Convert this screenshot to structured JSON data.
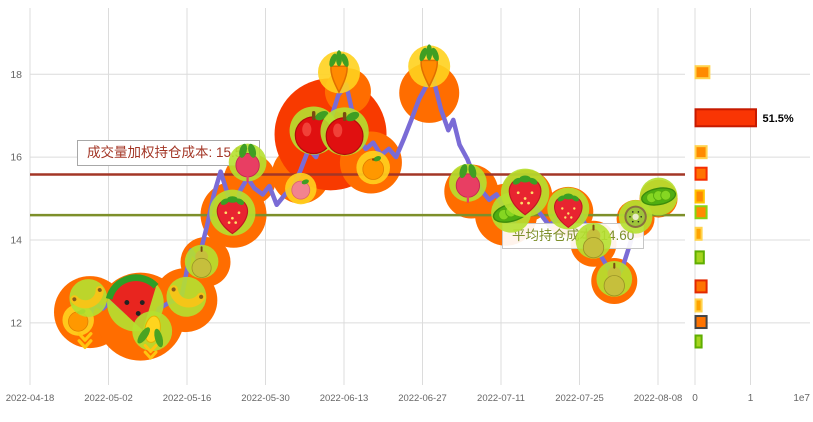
{
  "colors": {
    "line": "#7a6bd6",
    "grid": "#dcdcdc",
    "tick_text": "#666666",
    "blob_orange": "#ff6d00",
    "blob_red": "#f83a00"
  },
  "chart_data": {
    "type": "line",
    "title": "",
    "xlabel": "",
    "ylabel": "",
    "x_ticks": [
      "2022-04-18",
      "2022-05-02",
      "2022-05-16",
      "2022-05-30",
      "2022-06-13",
      "2022-06-27",
      "2022-07-11",
      "2022-07-25",
      "2022-08-08"
    ],
    "x_tick_interval_days": 14,
    "y_ticks": [
      12,
      14,
      16,
      18
    ],
    "ylim": [
      10.5,
      19.6
    ],
    "grid": true,
    "series": [
      {
        "name": "price",
        "color": "#7a6bd6",
        "points": [
          [
            8.5,
            12.55
          ],
          [
            10,
            11.95
          ],
          [
            11.5,
            12.45
          ],
          [
            13,
            12.35
          ],
          [
            14.7,
            12.55
          ],
          [
            16.5,
            12.3
          ],
          [
            18.5,
            12.5
          ],
          [
            20,
            12.2
          ],
          [
            21.5,
            11.85
          ],
          [
            23,
            12.35
          ],
          [
            25,
            12.5
          ],
          [
            27,
            12.6
          ],
          [
            28.7,
            13.75
          ],
          [
            30,
            13.5
          ],
          [
            31.5,
            14.3
          ],
          [
            32.8,
            15.1
          ],
          [
            34,
            15.65
          ],
          [
            35.5,
            15.0
          ],
          [
            36.5,
            14.75
          ],
          [
            37.5,
            15.2
          ],
          [
            38.8,
            15.5
          ],
          [
            40,
            15.25
          ],
          [
            41.5,
            15.1
          ],
          [
            42.7,
            15.3
          ],
          [
            44,
            14.85
          ],
          [
            45.5,
            15.1
          ],
          [
            47,
            15.3
          ],
          [
            48.3,
            15.7
          ],
          [
            49.7,
            16.2
          ],
          [
            51,
            16.0
          ],
          [
            52.2,
            16.45
          ],
          [
            53.6,
            16.9
          ],
          [
            55,
            17.5
          ],
          [
            56.4,
            17.75
          ],
          [
            57.8,
            16.9
          ],
          [
            58.6,
            16.45
          ],
          [
            59.9,
            16.2
          ],
          [
            61.2,
            16.35
          ],
          [
            62.6,
            16.05
          ],
          [
            64,
            16.2
          ],
          [
            65.3,
            16.0
          ],
          [
            66.7,
            16.45
          ],
          [
            68,
            16.9
          ],
          [
            69.4,
            17.4
          ],
          [
            70.8,
            17.75
          ],
          [
            71.9,
            17.9
          ],
          [
            73.3,
            17.15
          ],
          [
            74.6,
            16.65
          ],
          [
            75.5,
            16.9
          ],
          [
            76.6,
            16.3
          ],
          [
            78,
            15.95
          ],
          [
            79,
            15.6
          ],
          [
            80.5,
            15.2
          ],
          [
            81.9,
            14.97
          ],
          [
            83.2,
            15.1
          ],
          [
            84.6,
            14.75
          ],
          [
            85.8,
            14.35
          ],
          [
            87.2,
            14.6
          ],
          [
            88.5,
            15.1
          ],
          [
            89.8,
            14.85
          ],
          [
            91.2,
            14.6
          ],
          [
            92.6,
            14.35
          ],
          [
            93.9,
            14.5
          ],
          [
            95.3,
            14.75
          ],
          [
            96.7,
            14.6
          ],
          [
            98,
            14.68
          ],
          [
            99.4,
            14.25
          ],
          [
            100.5,
            13.9
          ],
          [
            101.9,
            13.6
          ],
          [
            103.2,
            13.3
          ],
          [
            104.4,
            13.0
          ],
          [
            105.7,
            13.35
          ],
          [
            107,
            13.9
          ],
          [
            108.2,
            14.5
          ],
          [
            109.6,
            14.75
          ],
          [
            111,
            14.97
          ],
          [
            112.5,
            15.25
          ]
        ]
      }
    ],
    "hlines": [
      {
        "name": "vwap-line",
        "value": 15.58,
        "color": "#a33626",
        "label": "成交量加权持仓成本: 15.58"
      },
      {
        "name": "avg-cost-line",
        "value": 14.6,
        "color": "#7d8f2a",
        "label": "平均持仓成本: 14.60"
      }
    ],
    "volume_profile": {
      "x_ticks": [
        "0",
        "1"
      ],
      "scale_label": "1e7",
      "bars": [
        {
          "price": 18.05,
          "value": 0.25,
          "fill": "#ff8a00",
          "stroke": "#ffd34d"
        },
        {
          "price": 16.95,
          "value": 1.09,
          "fill": "#f93504",
          "stroke": "#c61a00",
          "label": "51.5%"
        },
        {
          "price": 16.12,
          "value": 0.2,
          "fill": "#ff8a00",
          "stroke": "#ffd34d"
        },
        {
          "price": 15.6,
          "value": 0.2,
          "fill": "#ff7300",
          "stroke": "#f52d00"
        },
        {
          "price": 15.05,
          "value": 0.15,
          "fill": "#ff8a00",
          "stroke": "#ffc400"
        },
        {
          "price": 14.67,
          "value": 0.2,
          "fill": "#ff8a00",
          "stroke": "#86d413"
        },
        {
          "price": 14.15,
          "value": 0.11,
          "fill": "#ffa300",
          "stroke": "#ffd34d"
        },
        {
          "price": 13.58,
          "value": 0.15,
          "fill": "#a6d41f",
          "stroke": "#5fae00"
        },
        {
          "price": 12.88,
          "value": 0.2,
          "fill": "#ff7300",
          "stroke": "#e22800"
        },
        {
          "price": 12.42,
          "value": 0.11,
          "fill": "#ffa300",
          "stroke": "#ffd34d"
        },
        {
          "price": 12.02,
          "value": 0.2,
          "fill": "#ff7300",
          "stroke": "#444444"
        },
        {
          "price": 11.55,
          "value": 0.11,
          "fill": "#a6d41f",
          "stroke": "#5fae00"
        }
      ]
    }
  },
  "decorations": {
    "blobs": [
      {
        "day": 10.7,
        "price": 12.26,
        "r": 36,
        "color": "#ff6d00"
      },
      {
        "day": 19.7,
        "price": 12.15,
        "r": 44,
        "color": "#ff6d00"
      },
      {
        "day": 27.7,
        "price": 12.55,
        "r": 32,
        "color": "#ff6d00"
      },
      {
        "day": 31.3,
        "price": 13.47,
        "r": 25,
        "color": "#ff6d00"
      },
      {
        "day": 36.3,
        "price": 14.61,
        "r": 33,
        "color": "#ff6d00"
      },
      {
        "day": 39.2,
        "price": 15.46,
        "r": 26,
        "color": "#ff6d00"
      },
      {
        "day": 48.3,
        "price": 15.58,
        "r": 29,
        "color": "#ff6d00"
      },
      {
        "day": 53.6,
        "price": 16.55,
        "r": 56,
        "color": "#f83a00"
      },
      {
        "day": 56.7,
        "price": 17.59,
        "r": 23,
        "color": "#ff6d00"
      },
      {
        "day": 60.8,
        "price": 15.87,
        "r": 31,
        "color": "#ff6d00"
      },
      {
        "day": 71.2,
        "price": 17.55,
        "r": 30,
        "color": "#ff6d00"
      },
      {
        "day": 78.7,
        "price": 15.17,
        "r": 27,
        "color": "#ff6d00"
      },
      {
        "day": 84.9,
        "price": 14.61,
        "r": 31,
        "color": "#ff6d00"
      },
      {
        "day": 88.5,
        "price": 15.07,
        "r": 26,
        "color": "#ff6d00"
      },
      {
        "day": 96.0,
        "price": 14.68,
        "r": 25,
        "color": "#ff6d00"
      },
      {
        "day": 100.5,
        "price": 13.91,
        "r": 23,
        "color": "#ff6d00"
      },
      {
        "day": 104.2,
        "price": 13.01,
        "r": 23,
        "color": "#ff6d00"
      },
      {
        "day": 108.0,
        "price": 14.51,
        "r": 19,
        "color": "#ff6d00"
      },
      {
        "day": 112.1,
        "price": 15.0,
        "r": 19,
        "color": "#ff6d00"
      }
    ],
    "fruits": [
      {
        "type": "tangerine",
        "day": 8.6,
        "price": 12.07,
        "size": 30,
        "rot": 0,
        "halo": "#ffd21e"
      },
      {
        "type": "banana",
        "day": 10.4,
        "price": 12.6,
        "size": 36,
        "rot": -20,
        "halo": "#b5e030"
      },
      {
        "type": "arrow-down",
        "day": 9.8,
        "price": 11.55,
        "size": 26,
        "rot": 0
      },
      {
        "type": "watermelon",
        "day": 18.8,
        "price": 12.48,
        "size": 54,
        "rot": -15,
        "halo": "#b5e030"
      },
      {
        "type": "corn",
        "day": 21.8,
        "price": 11.8,
        "size": 38,
        "rot": 10,
        "halo": "#b5e030"
      },
      {
        "type": "arrow-down",
        "day": 21.5,
        "price": 11.28,
        "size": 24,
        "rot": 0
      },
      {
        "type": "banana",
        "day": 27.9,
        "price": 12.63,
        "size": 38,
        "rot": 15,
        "halo": "#b5e030"
      },
      {
        "type": "pear",
        "day": 30.6,
        "price": 13.48,
        "size": 32,
        "rot": 0,
        "halo": "#b5e030"
      },
      {
        "type": "strawberry",
        "day": 36.1,
        "price": 14.66,
        "size": 44,
        "rot": 0,
        "halo": "#b5e030"
      },
      {
        "type": "radish",
        "day": 38.8,
        "price": 15.87,
        "size": 36,
        "rot": 0,
        "halo": "#b5e030"
      },
      {
        "type": "peach",
        "day": 48.3,
        "price": 15.24,
        "size": 30,
        "rot": 0,
        "halo": "#ffd21e"
      },
      {
        "type": "apple",
        "day": 50.6,
        "price": 16.64,
        "size": 46,
        "rot": 0,
        "halo": "#b5e030"
      },
      {
        "type": "apple",
        "day": 56.1,
        "price": 16.62,
        "size": 46,
        "rot": 0,
        "halo": "#b5e030"
      },
      {
        "type": "carrot",
        "day": 55.1,
        "price": 18.05,
        "size": 40,
        "rot": 0,
        "halo": "#ffd21e"
      },
      {
        "type": "tangerine",
        "day": 61.2,
        "price": 15.75,
        "size": 32,
        "rot": 0,
        "halo": "#ffd21e"
      },
      {
        "type": "carrot",
        "day": 71.2,
        "price": 18.19,
        "size": 40,
        "rot": 0,
        "halo": "#ffd21e"
      },
      {
        "type": "radish",
        "day": 78.1,
        "price": 15.38,
        "size": 36,
        "rot": 0,
        "halo": "#b5e030"
      },
      {
        "type": "peas",
        "day": 85.8,
        "price": 14.66,
        "size": 38,
        "rot": -15,
        "halo": "#b5e030"
      },
      {
        "type": "strawberry",
        "day": 88.3,
        "price": 15.14,
        "size": 46,
        "rot": 0,
        "halo": "#b5e030"
      },
      {
        "type": "strawberry",
        "day": 96.0,
        "price": 14.76,
        "size": 40,
        "rot": 0,
        "halo": "#b5e030"
      },
      {
        "type": "pear",
        "day": 100.5,
        "price": 13.98,
        "size": 34,
        "rot": 0,
        "halo": "#b5e030"
      },
      {
        "type": "pear",
        "day": 104.2,
        "price": 13.06,
        "size": 34,
        "rot": 0,
        "halo": "#b5e030"
      },
      {
        "type": "kiwi",
        "day": 108.0,
        "price": 14.56,
        "size": 32,
        "rot": 0,
        "halo": "#b5e030"
      },
      {
        "type": "peas",
        "day": 112.1,
        "price": 15.05,
        "size": 36,
        "rot": -10,
        "halo": "#b5e030"
      }
    ]
  }
}
